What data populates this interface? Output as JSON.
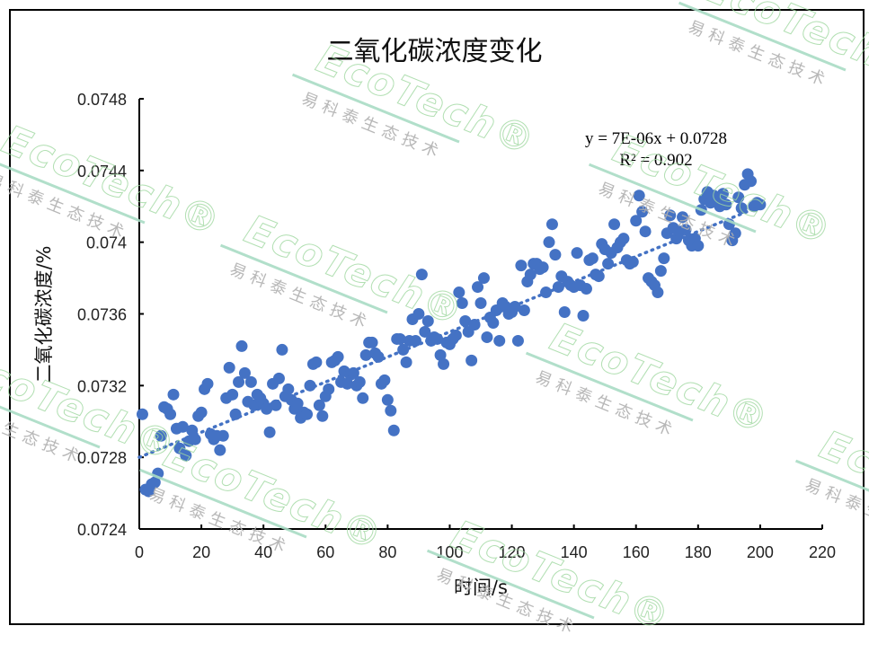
{
  "chart_data": {
    "type": "scatter",
    "title": "二氧化碳浓度变化",
    "xlabel": "时间/s",
    "ylabel": "二氧化碳浓度/%",
    "xlim": [
      0,
      220
    ],
    "ylim": [
      0.0724,
      0.0748
    ],
    "x_ticks": [
      0,
      20,
      40,
      60,
      80,
      100,
      120,
      140,
      160,
      180,
      200,
      220
    ],
    "x_tick_labels": [
      "0",
      "20",
      "40",
      "60",
      "80",
      "100",
      "120",
      "140",
      "160",
      "180",
      "200",
      "220"
    ],
    "y_ticks": [
      0.0724,
      0.0728,
      0.0732,
      0.0736,
      0.074,
      0.0744,
      0.0748
    ],
    "y_tick_labels": [
      "0.0724",
      "0.0728",
      "0.0732",
      "0.0736",
      "0.074",
      "0.0744",
      "0.0748"
    ],
    "grid": false,
    "legend": null,
    "marker_color": "#4472C4",
    "trendline": {
      "type": "linear",
      "style": "dotted",
      "slope": 7e-06,
      "intercept": 0.0728,
      "equation_label": "y = 7E-06x + 0.0728",
      "r2_label": "R² = 0.902",
      "r2": 0.902
    },
    "series": [
      {
        "name": "二氧化碳浓度",
        "points": [
          [
            1,
            0.07304
          ],
          [
            2,
            0.07262
          ],
          [
            3,
            0.07261
          ],
          [
            4,
            0.07265
          ],
          [
            5,
            0.07266
          ],
          [
            6,
            0.07271
          ],
          [
            7,
            0.07292
          ],
          [
            8,
            0.07308
          ],
          [
            9,
            0.07307
          ],
          [
            10,
            0.07304
          ],
          [
            11,
            0.07315
          ],
          [
            12,
            0.07296
          ],
          [
            13,
            0.07285
          ],
          [
            14,
            0.07297
          ],
          [
            15,
            0.07281
          ],
          [
            16,
            0.07289
          ],
          [
            17,
            0.07295
          ],
          [
            18,
            0.0729
          ],
          [
            19,
            0.07303
          ],
          [
            20,
            0.07305
          ],
          [
            21,
            0.07318
          ],
          [
            22,
            0.07321
          ],
          [
            23,
            0.07293
          ],
          [
            24,
            0.0729
          ],
          [
            25,
            0.07292
          ],
          [
            26,
            0.07284
          ],
          [
            27,
            0.07292
          ],
          [
            28,
            0.07313
          ],
          [
            29,
            0.0733
          ],
          [
            30,
            0.07315
          ],
          [
            31,
            0.07304
          ],
          [
            32,
            0.07322
          ],
          [
            33,
            0.07342
          ],
          [
            34,
            0.07327
          ],
          [
            35,
            0.07311
          ],
          [
            36,
            0.07322
          ],
          [
            37,
            0.07309
          ],
          [
            38,
            0.07315
          ],
          [
            39,
            0.07313
          ],
          [
            40,
            0.0731
          ],
          [
            41,
            0.07307
          ],
          [
            42,
            0.07294
          ],
          [
            43,
            0.07321
          ],
          [
            44,
            0.07309
          ],
          [
            45,
            0.07324
          ],
          [
            46,
            0.0734
          ],
          [
            47,
            0.07314
          ],
          [
            48,
            0.07318
          ],
          [
            49,
            0.07312
          ],
          [
            50,
            0.07307
          ],
          [
            51,
            0.0731
          ],
          [
            52,
            0.07302
          ],
          [
            53,
            0.07305
          ],
          [
            54,
            0.07304
          ],
          [
            55,
            0.0732
          ],
          [
            56,
            0.07332
          ],
          [
            57,
            0.07333
          ],
          [
            58,
            0.07309
          ],
          [
            59,
            0.07303
          ],
          [
            60,
            0.07314
          ],
          [
            61,
            0.07318
          ],
          [
            62,
            0.07333
          ],
          [
            63,
            0.07334
          ],
          [
            64,
            0.07336
          ],
          [
            65,
            0.07322
          ],
          [
            66,
            0.07328
          ],
          [
            67,
            0.07321
          ],
          [
            68,
            0.07326
          ],
          [
            69,
            0.07327
          ],
          [
            70,
            0.0732
          ],
          [
            71,
            0.07322
          ],
          [
            72,
            0.07313
          ],
          [
            73,
            0.07337
          ],
          [
            74,
            0.07344
          ],
          [
            75,
            0.07344
          ],
          [
            76,
            0.07338
          ],
          [
            77,
            0.07336
          ],
          [
            78,
            0.07321
          ],
          [
            79,
            0.07323
          ],
          [
            80,
            0.07312
          ],
          [
            81,
            0.07306
          ],
          [
            82,
            0.07295
          ],
          [
            83,
            0.07346
          ],
          [
            84,
            0.07346
          ],
          [
            85,
            0.0734
          ],
          [
            86,
            0.07333
          ],
          [
            87,
            0.07345
          ],
          [
            88,
            0.07357
          ],
          [
            89,
            0.07345
          ],
          [
            90,
            0.0736
          ],
          [
            91,
            0.07382
          ],
          [
            92,
            0.0735
          ],
          [
            93,
            0.07356
          ],
          [
            94,
            0.07345
          ],
          [
            95,
            0.07347
          ],
          [
            96,
            0.07346
          ],
          [
            97,
            0.07337
          ],
          [
            98,
            0.07332
          ],
          [
            99,
            0.07344
          ],
          [
            100,
            0.07343
          ],
          [
            101,
            0.07346
          ],
          [
            102,
            0.07348
          ],
          [
            103,
            0.07372
          ],
          [
            104,
            0.07366
          ],
          [
            105,
            0.07356
          ],
          [
            106,
            0.0735
          ],
          [
            107,
            0.07334
          ],
          [
            108,
            0.07354
          ],
          [
            109,
            0.07375
          ],
          [
            110,
            0.07366
          ],
          [
            111,
            0.0738
          ],
          [
            112,
            0.07347
          ],
          [
            113,
            0.07358
          ],
          [
            114,
            0.07355
          ],
          [
            115,
            0.07362
          ],
          [
            116,
            0.07345
          ],
          [
            117,
            0.07366
          ],
          [
            118,
            0.07364
          ],
          [
            119,
            0.0736
          ],
          [
            120,
            0.07361
          ],
          [
            121,
            0.07364
          ],
          [
            122,
            0.07345
          ],
          [
            123,
            0.07387
          ],
          [
            124,
            0.07362
          ],
          [
            125,
            0.07378
          ],
          [
            126,
            0.07382
          ],
          [
            127,
            0.07388
          ],
          [
            128,
            0.07388
          ],
          [
            129,
            0.07385
          ],
          [
            130,
            0.07386
          ],
          [
            131,
            0.07372
          ],
          [
            132,
            0.074
          ],
          [
            133,
            0.0741
          ],
          [
            134,
            0.07393
          ],
          [
            135,
            0.07375
          ],
          [
            136,
            0.07381
          ],
          [
            137,
            0.07361
          ],
          [
            138,
            0.07378
          ],
          [
            139,
            0.07376
          ],
          [
            140,
            0.07375
          ],
          [
            141,
            0.07394
          ],
          [
            142,
            0.07376
          ],
          [
            143,
            0.07359
          ],
          [
            144,
            0.07374
          ],
          [
            145,
            0.0739
          ],
          [
            146,
            0.07391
          ],
          [
            147,
            0.07382
          ],
          [
            148,
            0.07381
          ],
          [
            149,
            0.07399
          ],
          [
            150,
            0.07396
          ],
          [
            151,
            0.07388
          ],
          [
            152,
            0.07394
          ],
          [
            153,
            0.0741
          ],
          [
            154,
            0.07397
          ],
          [
            155,
            0.074
          ],
          [
            156,
            0.07402
          ],
          [
            157,
            0.0739
          ],
          [
            158,
            0.07388
          ],
          [
            159,
            0.07389
          ],
          [
            160,
            0.07412
          ],
          [
            161,
            0.07426
          ],
          [
            162,
            0.07417
          ],
          [
            163,
            0.07406
          ],
          [
            164,
            0.0738
          ],
          [
            165,
            0.07378
          ],
          [
            166,
            0.07376
          ],
          [
            167,
            0.07372
          ],
          [
            168,
            0.07384
          ],
          [
            169,
            0.07391
          ],
          [
            170,
            0.07405
          ],
          [
            171,
            0.07415
          ],
          [
            172,
            0.07408
          ],
          [
            173,
            0.07402
          ],
          [
            174,
            0.07406
          ],
          [
            175,
            0.07414
          ],
          [
            176,
            0.07407
          ],
          [
            177,
            0.07401
          ],
          [
            178,
            0.07398
          ],
          [
            179,
            0.07402
          ],
          [
            180,
            0.07398
          ],
          [
            181,
            0.07418
          ],
          [
            182,
            0.07424
          ],
          [
            183,
            0.07428
          ],
          [
            184,
            0.07422
          ],
          [
            185,
            0.07426
          ],
          [
            186,
            0.07424
          ],
          [
            187,
            0.0742
          ],
          [
            188,
            0.07427
          ],
          [
            189,
            0.07421
          ],
          [
            190,
            0.0741
          ],
          [
            191,
            0.07401
          ],
          [
            192,
            0.07405
          ],
          [
            193,
            0.07425
          ],
          [
            194,
            0.07419
          ],
          [
            195,
            0.07432
          ],
          [
            196,
            0.07438
          ],
          [
            197,
            0.07434
          ],
          [
            198,
            0.0742
          ],
          [
            199,
            0.07422
          ],
          [
            200,
            0.07421
          ]
        ]
      }
    ]
  },
  "watermarks": {
    "logo_text": "EcoTech",
    "registered_mark": "®",
    "company_text": "易科泰生态技术",
    "logo_color": "#9fd8a0",
    "line_color": "#a8dcc4",
    "company_color": "#b0b0b0"
  }
}
